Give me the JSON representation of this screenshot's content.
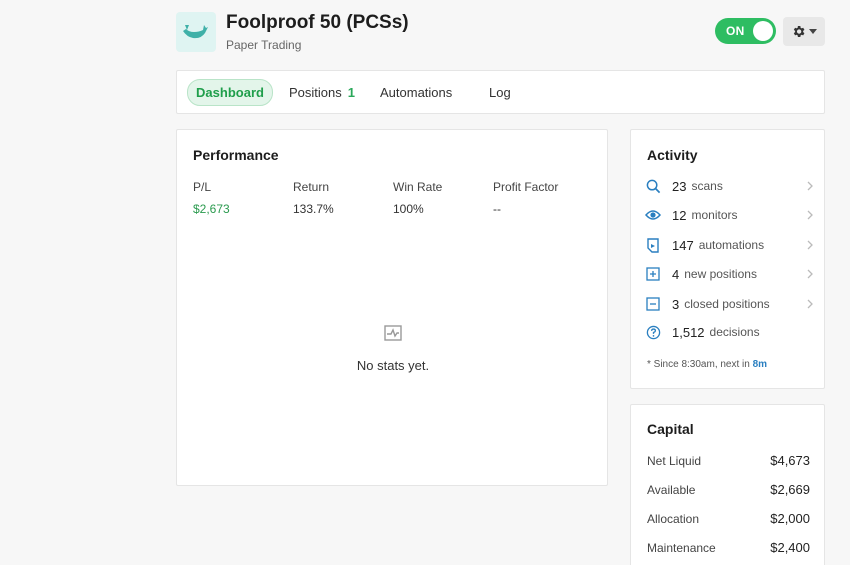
{
  "bot": {
    "title": "Foolproof 50 (PCSs)",
    "subtitle": "Paper Trading",
    "toggle_label": "ON",
    "logo_icon": "whale-icon"
  },
  "tabs": [
    {
      "label": "Dashboard",
      "active": true
    },
    {
      "label": "Positions",
      "badge": "1"
    },
    {
      "label": "Automations"
    },
    {
      "label": "Log"
    }
  ],
  "performance": {
    "title": "Performance",
    "stats": [
      {
        "label": "P/L",
        "value": "$2,673"
      },
      {
        "label": "Return",
        "value": "133.7%"
      },
      {
        "label": "Win Rate",
        "value": "100%"
      },
      {
        "label": "Profit Factor",
        "value": "--"
      }
    ],
    "empty_text": "No stats yet."
  },
  "activity": {
    "title": "Activity",
    "items": [
      {
        "count": "23",
        "label": "scans",
        "icon": "search-icon"
      },
      {
        "count": "12",
        "label": "monitors",
        "icon": "eye-icon"
      },
      {
        "count": "147",
        "label": "automations",
        "icon": "automation-icon"
      },
      {
        "count": "4",
        "label": "new positions",
        "icon": "plus-square-icon"
      },
      {
        "count": "3",
        "label": "closed positions",
        "icon": "minus-square-icon"
      },
      {
        "count": "1,512",
        "label": "decisions",
        "icon": "question-circle-icon"
      }
    ],
    "note_prefix": "* Since 8:30am, next in ",
    "note_highlight": "8m"
  },
  "capital": {
    "title": "Capital",
    "rows": [
      {
        "label": "Net Liquid",
        "value": "$4,673"
      },
      {
        "label": "Available",
        "value": "$2,669"
      },
      {
        "label": "Allocation",
        "value": "$2,000"
      },
      {
        "label": "Maintenance",
        "value": "$2,400"
      }
    ]
  },
  "colors": {
    "accent_green": "#2ebd62",
    "icon_blue": "#2a7fc0",
    "logo_teal": "#3fb0a8"
  }
}
